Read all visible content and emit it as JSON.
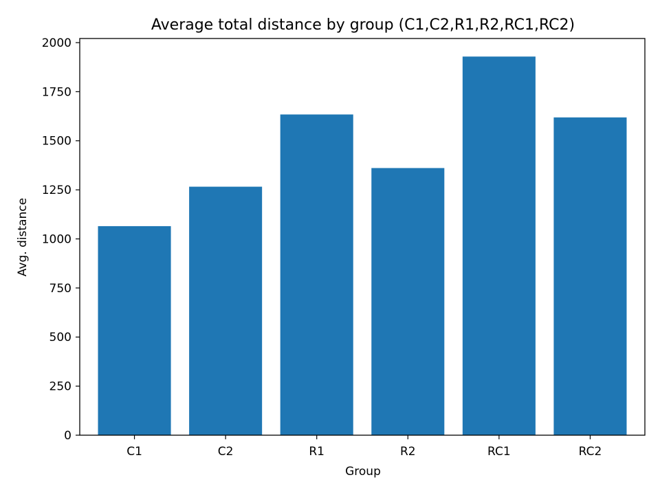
{
  "chart_data": {
    "type": "bar",
    "title": "Average total distance by group (C1,C2,R1,R2,RC1,RC2)",
    "xlabel": "Group",
    "ylabel": "Avg. distance",
    "categories": [
      "C1",
      "C2",
      "R1",
      "R2",
      "RC1",
      "RC2"
    ],
    "values": [
      1065,
      1266,
      1634,
      1361,
      1929,
      1619
    ],
    "ylim": [
      0,
      2021
    ],
    "yticks": [
      0,
      250,
      500,
      750,
      1000,
      1250,
      1500,
      1750,
      2000
    ],
    "bar_color": "#1f77b4",
    "grid": false,
    "legend": "none"
  }
}
